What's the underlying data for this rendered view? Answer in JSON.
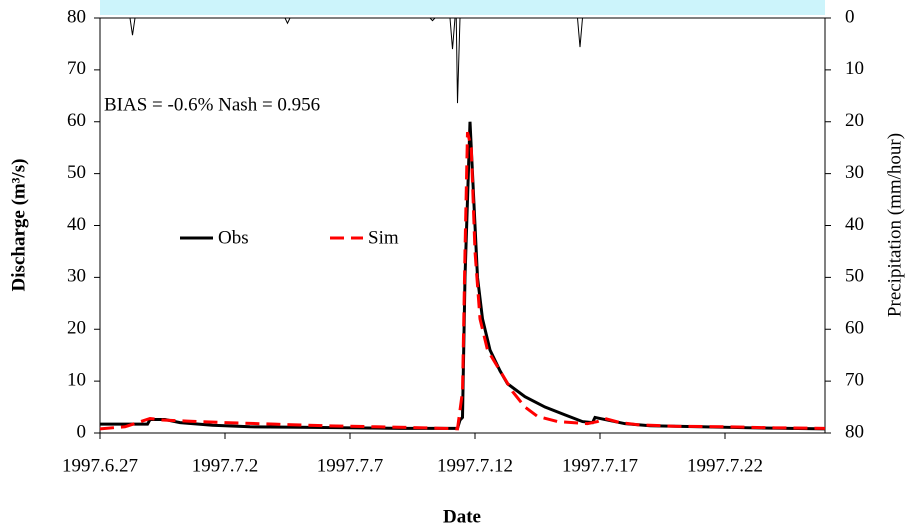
{
  "chart_data": {
    "type": "line",
    "annotation": "BIAS = -0.6%   Nash = 0.956",
    "x_label": "Date",
    "y_label": "Discharge (m³/s)",
    "y2_label": "Precipitation (mm/hour)",
    "xlim": [
      0,
      29
    ],
    "xticks": [
      {
        "value": 0,
        "label": "1997.6.27"
      },
      {
        "value": 5,
        "label": "1997.7.2"
      },
      {
        "value": 10,
        "label": "1997.7.7"
      },
      {
        "value": 15,
        "label": "1997.7.12"
      },
      {
        "value": 20,
        "label": "1997.7.17"
      },
      {
        "value": 25,
        "label": "1997.7.22"
      }
    ],
    "ylim": [
      0,
      80
    ],
    "yticks": [
      0,
      10,
      20,
      30,
      40,
      50,
      60,
      70,
      80
    ],
    "y2lim": [
      80,
      0
    ],
    "y2ticks": [
      0,
      10,
      20,
      30,
      40,
      50,
      60,
      70,
      80
    ],
    "series": [
      {
        "name": "Obs",
        "color": "#000000",
        "dash": false,
        "x": [
          0,
          1.9,
          2.0,
          2.6,
          3.2,
          4.5,
          6,
          8,
          10,
          12,
          14.3,
          14.4,
          14.5,
          14.6,
          14.8,
          14.95,
          15.1,
          15.3,
          15.6,
          16.0,
          16.3,
          17.0,
          17.8,
          18.6,
          19.3,
          19.7,
          19.8,
          20.3,
          21,
          22,
          24,
          26,
          29
        ],
        "values": [
          1.7,
          1.7,
          2.6,
          2.6,
          2.0,
          1.5,
          1.2,
          1.1,
          1.0,
          0.9,
          0.9,
          2.5,
          3,
          30,
          60,
          45,
          30,
          22,
          16,
          12,
          9.5,
          7,
          5,
          3.5,
          2.2,
          2.0,
          3.0,
          2.5,
          1.8,
          1.4,
          1.2,
          1.0,
          0.8
        ]
      },
      {
        "name": "Sim",
        "color": "#ff0000",
        "dash": true,
        "x": [
          0,
          1,
          1.5,
          2.0,
          2.5,
          3.5,
          5,
          7,
          9,
          11,
          13,
          14.3,
          14.5,
          14.6,
          14.7,
          14.85,
          15.0,
          15.2,
          15.5,
          16,
          16.5,
          17,
          17.5,
          18.3,
          19.5,
          19.9,
          20.2,
          20.8,
          21.5,
          23,
          25,
          27,
          29
        ],
        "values": [
          0.8,
          1.2,
          2.0,
          2.8,
          2.5,
          2.3,
          2.0,
          1.7,
          1.4,
          1.2,
          1.0,
          0.8,
          8,
          35,
          58,
          55,
          35,
          22,
          16,
          12,
          8,
          5,
          3.2,
          2.2,
          1.8,
          2.2,
          2.8,
          2.0,
          1.6,
          1.3,
          1.2,
          1.0,
          0.9
        ]
      }
    ],
    "precipitation": {
      "axis": "y2",
      "color": "#000000",
      "x": [
        0,
        1.2,
        1.3,
        1.4,
        7.4,
        7.5,
        7.6,
        13.2,
        13.3,
        13.4,
        14.0,
        14.1,
        14.2,
        14.25,
        14.3,
        14.4,
        19.1,
        19.2,
        19.3,
        29
      ],
      "values": [
        0,
        0,
        3.3,
        0,
        0,
        1,
        0,
        0,
        0.5,
        0,
        0,
        6,
        0,
        0,
        16.4,
        0,
        0,
        5.6,
        0,
        0
      ]
    }
  }
}
